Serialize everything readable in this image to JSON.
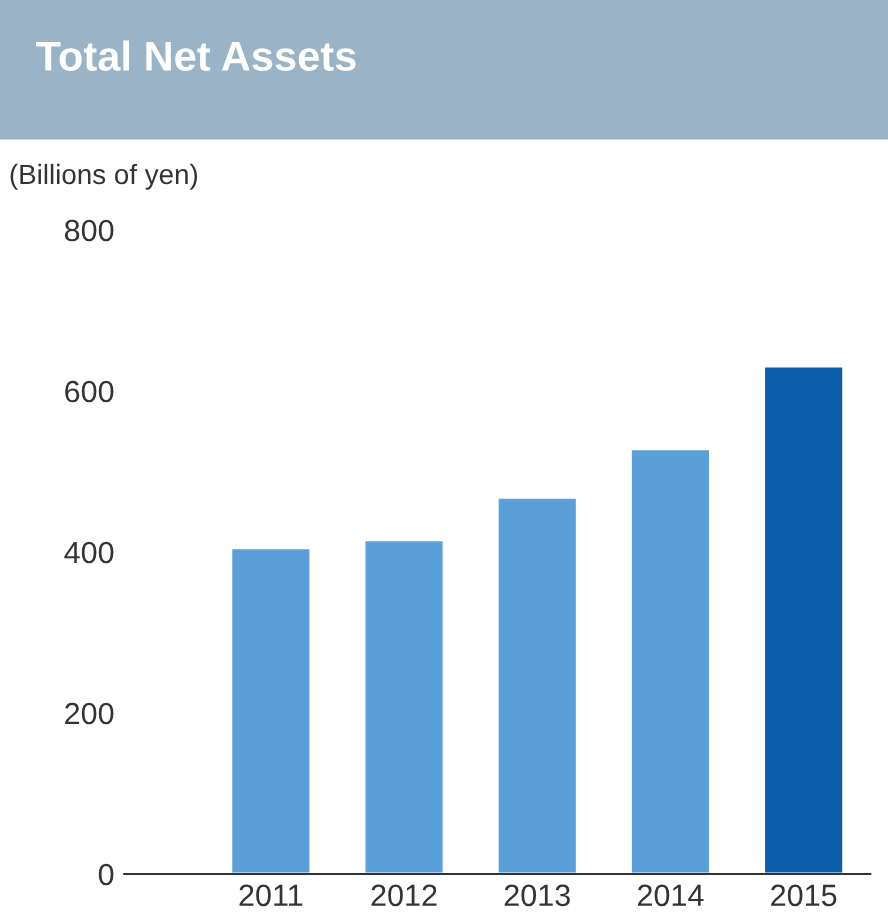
{
  "chart_data": {
    "type": "bar",
    "title": "Total Net Assets",
    "ylabel": "(Billions of yen)",
    "categories": [
      "2011",
      "2012",
      "2013",
      "2014",
      "2015"
    ],
    "values": [
      405,
      415,
      468,
      528,
      631
    ],
    "colors": [
      "#5b9fd8",
      "#5b9fd8",
      "#5b9fd8",
      "#5b9fd8",
      "#0a5eaa"
    ],
    "ylim": [
      0,
      800
    ],
    "yticks": [
      0,
      200,
      400,
      600,
      800
    ],
    "grid": false,
    "legend": false
  }
}
